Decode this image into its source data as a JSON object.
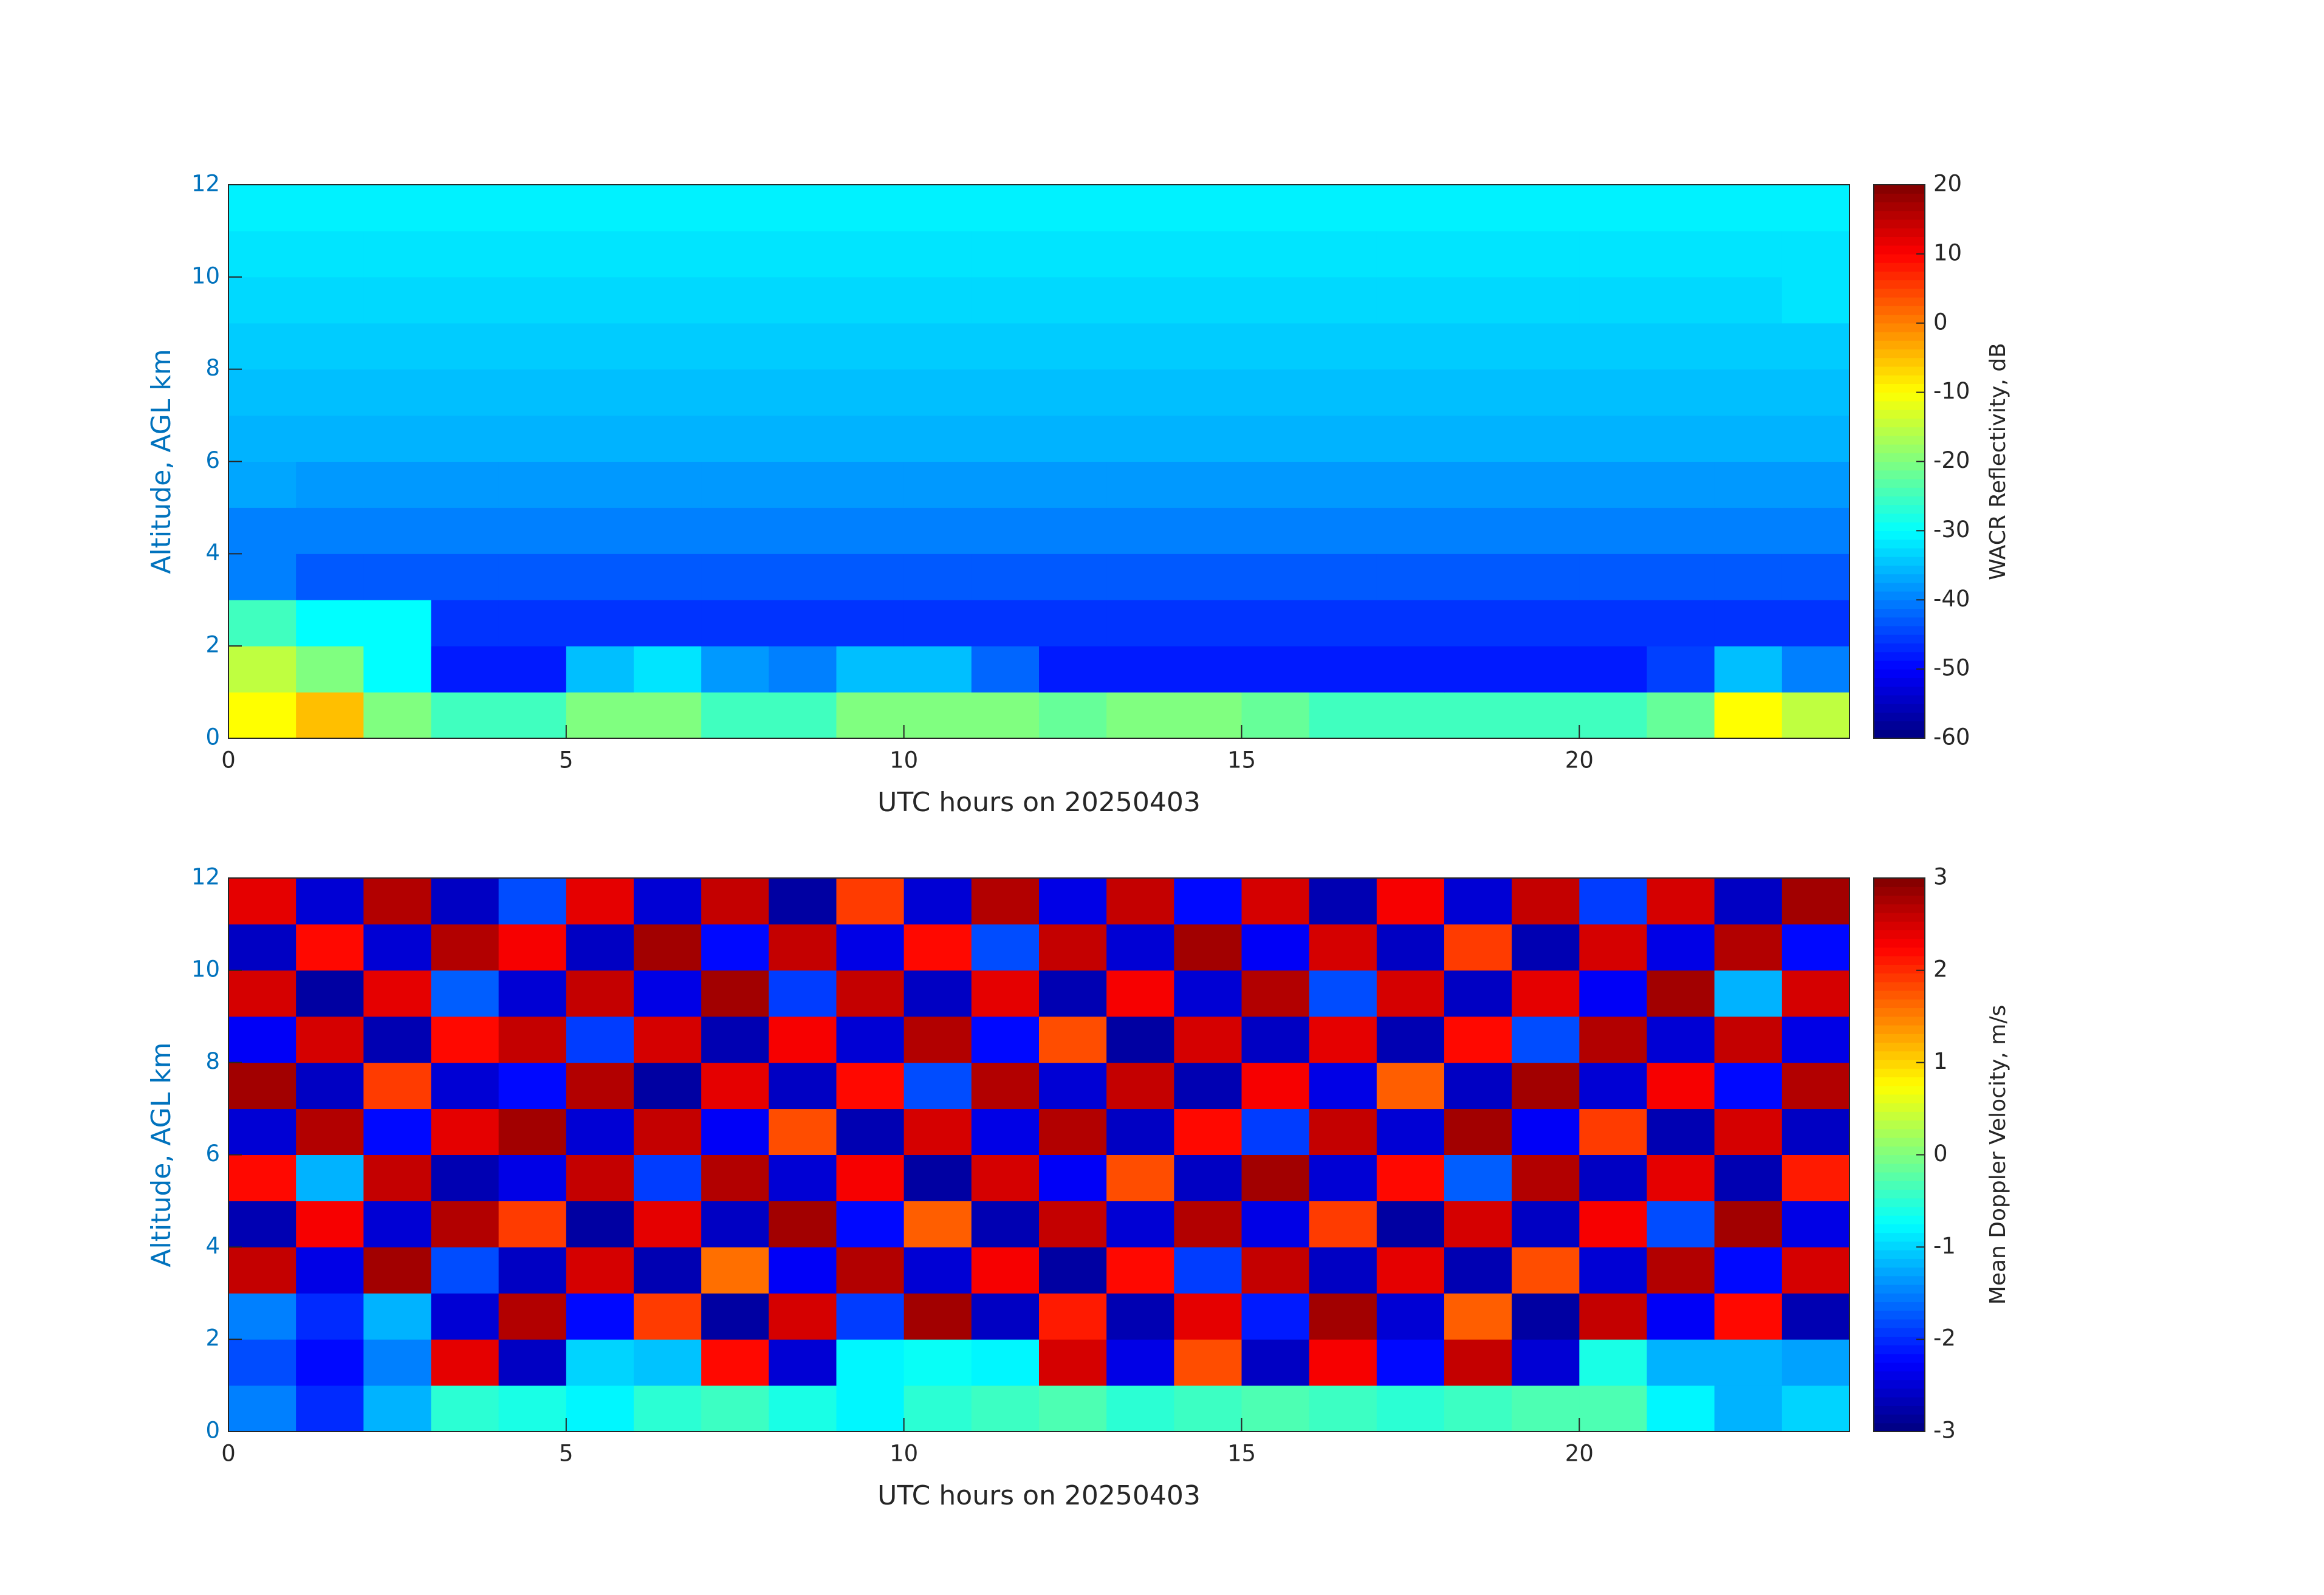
{
  "chart_data": [
    {
      "type": "heatmap",
      "colormap": "jet",
      "xlabel": "UTC hours on 20250403",
      "ylabel": "Altitude, AGL km",
      "colorbar_label": "WACR Reflectivity, dB",
      "xlim": [
        0,
        24
      ],
      "ylim": [
        0,
        12
      ],
      "xticks": [
        0,
        5,
        10,
        15,
        20
      ],
      "yticks": [
        0,
        2,
        4,
        6,
        8,
        10,
        12
      ],
      "clim": [
        -60,
        20
      ],
      "cticks": [
        -60,
        -50,
        -40,
        -30,
        -20,
        -10,
        0,
        10,
        20
      ],
      "x": [
        0.5,
        1.5,
        2.5,
        3.5,
        4.5,
        5.5,
        6.5,
        7.5,
        8.5,
        9.5,
        10.5,
        11.5,
        12.5,
        13.5,
        14.5,
        15.5,
        16.5,
        17.5,
        18.5,
        19.5,
        20.5,
        21.5,
        22.5,
        23.5
      ],
      "y": [
        0.5,
        1.5,
        2.5,
        3.5,
        4.5,
        5.5,
        6.5,
        7.5,
        8.5,
        9.5,
        10.5,
        11.5
      ],
      "values": [
        [
          -10,
          -5,
          -20,
          -25,
          -25,
          -20,
          -20,
          -25,
          -25,
          -20,
          -20,
          -20,
          -22,
          -20,
          -20,
          -22,
          -25,
          -25,
          -25,
          -25,
          -25,
          -22,
          -10,
          -15
        ],
        [
          -15,
          -20,
          -30,
          -48,
          -48,
          -35,
          -32,
          -38,
          -40,
          -35,
          -35,
          -42,
          -48,
          -48,
          -48,
          -48,
          -48,
          -48,
          -48,
          -48,
          -48,
          -45,
          -35,
          -40
        ],
        [
          -25,
          -30,
          -30,
          -46,
          -46,
          -46,
          -46,
          -46,
          -46,
          -46,
          -46,
          -46,
          -46,
          -46,
          -46,
          -46,
          -46,
          -46,
          -46,
          -46,
          -46,
          -46,
          -46,
          -46
        ],
        [
          -40,
          -43,
          -43,
          -43,
          -43,
          -43,
          -43,
          -43,
          -43,
          -43,
          -43,
          -43,
          -43,
          -43,
          -43,
          -43,
          -43,
          -43,
          -43,
          -43,
          -43,
          -43,
          -43,
          -43
        ],
        [
          -40,
          -40,
          -40,
          -40,
          -40,
          -40,
          -40,
          -40,
          -40,
          -40,
          -40,
          -40,
          -40,
          -40,
          -40,
          -40,
          -40,
          -40,
          -40,
          -40,
          -40,
          -40,
          -40,
          -40
        ],
        [
          -37,
          -38,
          -38,
          -38,
          -38,
          -38,
          -38,
          -38,
          -38,
          -38,
          -38,
          -38,
          -38,
          -38,
          -38,
          -38,
          -38,
          -38,
          -38,
          -38,
          -38,
          -38,
          -38,
          -38
        ],
        [
          -36,
          -36,
          -36,
          -36,
          -36,
          -36,
          -36,
          -36,
          -36,
          -36,
          -36,
          -36,
          -36,
          -36,
          -36,
          -36,
          -36,
          -36,
          -36,
          -36,
          -36,
          -36,
          -36,
          -36
        ],
        [
          -35,
          -35,
          -35,
          -35,
          -35,
          -35,
          -35,
          -35,
          -35,
          -35,
          -35,
          -35,
          -35,
          -35,
          -35,
          -35,
          -35,
          -35,
          -35,
          -35,
          -35,
          -35,
          -35,
          -35
        ],
        [
          -34,
          -34,
          -34,
          -34,
          -34,
          -34,
          -34,
          -34,
          -34,
          -34,
          -34,
          -34,
          -34,
          -34,
          -34,
          -34,
          -34,
          -34,
          -34,
          -34,
          -34,
          -34,
          -34,
          -34
        ],
        [
          -33,
          -33,
          -33,
          -33,
          -33,
          -33,
          -33,
          -33,
          -33,
          -33,
          -33,
          -33,
          -33,
          -33,
          -33,
          -33,
          -33,
          -33,
          -33,
          -33,
          -33,
          -33,
          -33,
          -32
        ],
        [
          -32,
          -32,
          -32,
          -32,
          -32,
          -32,
          -32,
          -32,
          -32,
          -32,
          -32,
          -32,
          -32,
          -32,
          -32,
          -32,
          -32,
          -32,
          -32,
          -32,
          -32,
          -32,
          -32,
          -32
        ],
        [
          -31,
          -31,
          -31,
          -31,
          -31,
          -31,
          -31,
          -31,
          -31,
          -31,
          -31,
          -31,
          -31,
          -31,
          -31,
          -31,
          -31,
          -31,
          -31,
          -31,
          -31,
          -31,
          -31,
          -31
        ]
      ]
    },
    {
      "type": "heatmap",
      "colormap": "jet",
      "xlabel": "UTC hours on 20250403",
      "ylabel": "Altitude, AGL km",
      "colorbar_label": "Mean Doppler Velocity, m/s",
      "xlim": [
        0,
        24
      ],
      "ylim": [
        0,
        12
      ],
      "xticks": [
        0,
        5,
        10,
        15,
        20
      ],
      "yticks": [
        0,
        2,
        4,
        6,
        8,
        10,
        12
      ],
      "clim": [
        -3,
        3
      ],
      "cticks": [
        -3,
        -2,
        -1,
        0,
        1,
        2,
        3
      ],
      "x": [
        0.5,
        1.5,
        2.5,
        3.5,
        4.5,
        5.5,
        6.5,
        7.5,
        8.5,
        9.5,
        10.5,
        11.5,
        12.5,
        13.5,
        14.5,
        15.5,
        16.5,
        17.5,
        18.5,
        19.5,
        20.5,
        21.5,
        22.5,
        23.5
      ],
      "y": [
        0.5,
        1.5,
        2.5,
        3.5,
        4.5,
        5.5,
        6.5,
        7.5,
        8.5,
        9.5,
        10.5,
        11.5
      ],
      "values": [
        [
          -1.5,
          -2,
          -1.2,
          -0.5,
          -0.6,
          -0.8,
          -0.5,
          -0.4,
          -0.6,
          -0.8,
          -0.5,
          -0.4,
          -0.3,
          -0.5,
          -0.4,
          -0.3,
          -0.4,
          -0.5,
          -0.4,
          -0.3,
          -0.3,
          -0.8,
          -1.2,
          -1
        ],
        [
          -1.8,
          -2.2,
          -1.5,
          2.4,
          -2.6,
          -1,
          -1.1,
          2.2,
          -2.5,
          -0.8,
          -0.7,
          -0.8,
          2.5,
          -2.4,
          1.8,
          -2.6,
          2.3,
          -2.2,
          2.6,
          -2.5,
          -0.6,
          -1.2,
          -1.2,
          -1.3
        ],
        [
          -1.5,
          -2,
          -1.2,
          -2.5,
          2.7,
          -2.2,
          1.9,
          -2.8,
          2.5,
          -1.9,
          2.8,
          -2.6,
          2.1,
          -2.7,
          2.4,
          -2.1,
          2.8,
          -2.5,
          1.7,
          -2.8,
          2.6,
          -2.3,
          2.2,
          -2.7
        ],
        [
          2.6,
          -2.4,
          2.8,
          -1.8,
          -2.6,
          2.5,
          -2.7,
          1.6,
          -2.3,
          2.7,
          -2.5,
          2.3,
          -2.8,
          2.2,
          -1.9,
          2.6,
          -2.6,
          2.4,
          -2.7,
          1.8,
          -2.5,
          2.7,
          -2.2,
          2.5
        ],
        [
          -2.7,
          2.3,
          -2.5,
          2.7,
          1.9,
          -2.8,
          2.4,
          -2.6,
          2.8,
          -2.2,
          1.7,
          -2.7,
          2.6,
          -2.5,
          2.7,
          -2.4,
          1.9,
          -2.8,
          2.5,
          -2.6,
          2.3,
          -1.8,
          2.8,
          -2.4
        ],
        [
          2.2,
          -1.2,
          2.6,
          -2.7,
          -2.4,
          2.6,
          -1.9,
          2.7,
          -2.5,
          2.3,
          -2.8,
          2.5,
          -2.3,
          1.8,
          -2.6,
          2.8,
          -2.5,
          2.2,
          -1.7,
          2.7,
          -2.6,
          2.4,
          -2.7,
          2.1
        ],
        [
          -2.5,
          2.7,
          -2.2,
          2.4,
          2.8,
          -2.5,
          2.6,
          -2.3,
          1.8,
          -2.7,
          2.5,
          -2.4,
          2.7,
          -2.6,
          2.2,
          -1.9,
          2.6,
          -2.5,
          2.8,
          -2.3,
          1.9,
          -2.7,
          2.5,
          -2.6
        ],
        [
          2.8,
          -2.6,
          1.9,
          -2.5,
          -2.2,
          2.7,
          -2.8,
          2.4,
          -2.6,
          2.2,
          -1.8,
          2.7,
          -2.5,
          2.6,
          -2.7,
          2.3,
          -2.4,
          1.7,
          -2.6,
          2.8,
          -2.5,
          2.3,
          -2.2,
          2.7
        ],
        [
          -2.3,
          2.5,
          -2.7,
          2.2,
          2.6,
          -1.9,
          2.5,
          -2.7,
          2.3,
          -2.5,
          2.7,
          -2.2,
          1.8,
          -2.8,
          2.5,
          -2.6,
          2.4,
          -2.7,
          2.2,
          -1.8,
          2.7,
          -2.5,
          2.6,
          -2.4
        ],
        [
          2.5,
          -2.8,
          2.4,
          -1.7,
          -2.5,
          2.6,
          -2.4,
          2.8,
          -1.9,
          2.6,
          -2.6,
          2.4,
          -2.7,
          2.3,
          -2.5,
          2.7,
          -1.8,
          2.5,
          -2.6,
          2.4,
          -2.3,
          2.8,
          -1.2,
          2.5
        ],
        [
          -2.6,
          2.2,
          -2.5,
          2.7,
          2.3,
          -2.6,
          2.8,
          -2.2,
          2.6,
          -2.4,
          2.2,
          -1.8,
          2.6,
          -2.5,
          2.8,
          -2.3,
          2.5,
          -2.6,
          1.9,
          -2.7,
          2.5,
          -2.4,
          2.7,
          -2.2
        ],
        [
          2.4,
          -2.5,
          2.7,
          -2.6,
          -1.8,
          2.4,
          -2.5,
          2.6,
          -2.8,
          1.9,
          -2.5,
          2.7,
          -2.4,
          2.6,
          -2.2,
          2.5,
          -2.7,
          2.3,
          -2.5,
          2.6,
          -1.9,
          2.5,
          -2.6,
          2.8
        ]
      ]
    }
  ]
}
